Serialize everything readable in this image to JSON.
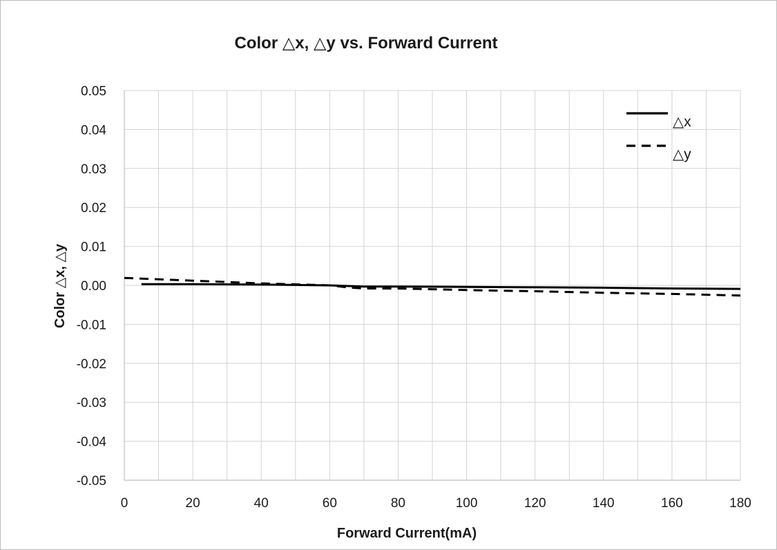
{
  "chart_data": {
    "type": "line",
    "title": "Color △x, △y vs. Forward Current",
    "xlabel": "Forward Current(mA)",
    "ylabel": "Color △x, △y",
    "xlim": [
      0,
      180
    ],
    "ylim": [
      -0.05,
      0.05
    ],
    "x_ticks": [
      0,
      20,
      40,
      60,
      80,
      100,
      120,
      140,
      160,
      180
    ],
    "x_tick_labels": [
      "0",
      "20",
      "40",
      "60",
      "80",
      "100",
      "120",
      "140",
      "160",
      "180"
    ],
    "y_ticks": [
      0.05,
      0.04,
      0.03,
      0.02,
      0.01,
      0.0,
      -0.01,
      -0.02,
      -0.03,
      -0.04,
      -0.05
    ],
    "y_tick_labels": [
      "0.05",
      "0.04",
      "0.03",
      "0.02",
      "0.01",
      "0.00",
      "-0.01",
      "-0.02",
      "-0.03",
      "-0.04",
      "-0.05"
    ],
    "grid": true,
    "x_grid_step": 10,
    "legend_position": "top-right",
    "series": [
      {
        "name": "△x",
        "style": "solid",
        "color": "#000000",
        "x": [
          5,
          20,
          40,
          60,
          70,
          80,
          100,
          120,
          140,
          160,
          180
        ],
        "y": [
          0.0003,
          0.0003,
          0.0002,
          0.0,
          -0.0003,
          -0.0003,
          -0.0004,
          -0.0005,
          -0.0006,
          -0.0008,
          -0.0009
        ]
      },
      {
        "name": "△y",
        "style": "dashed",
        "color": "#000000",
        "x": [
          0,
          20,
          40,
          60,
          65,
          70,
          80,
          100,
          120,
          140,
          160,
          180
        ],
        "y": [
          0.0019,
          0.0012,
          0.0005,
          0.0,
          -0.0005,
          -0.0008,
          -0.0008,
          -0.0012,
          -0.0015,
          -0.0019,
          -0.0022,
          -0.0026
        ]
      }
    ]
  }
}
